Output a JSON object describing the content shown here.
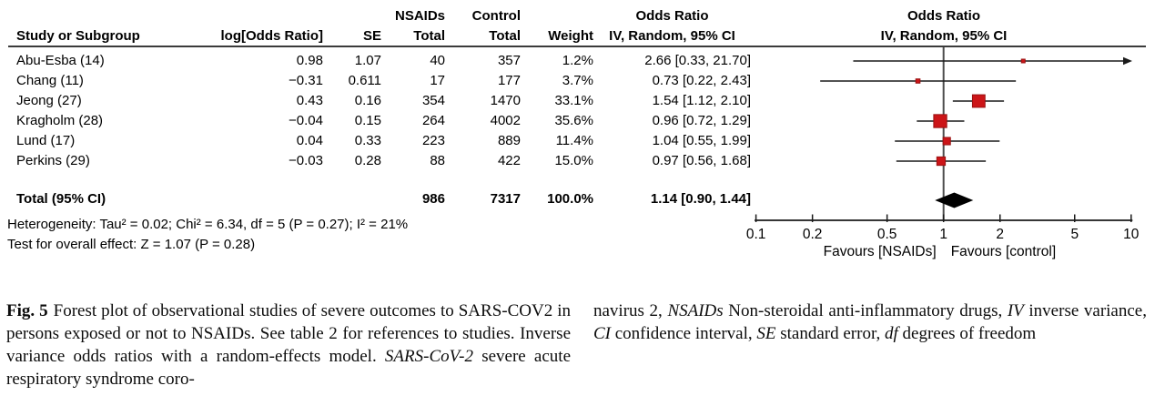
{
  "figure": {
    "group_headers": {
      "nsaids": "NSAIDs",
      "control": "Control"
    },
    "col_headers": {
      "study": "Study or Subgroup",
      "log_or": "log[Odds Ratio]",
      "se": "SE",
      "nsaids_total": "Total",
      "control_total": "Total",
      "weight": "Weight",
      "or_title": "Odds Ratio",
      "or_ci": "IV, Random, 95% CI"
    },
    "plot_headers": {
      "title": "Odds Ratio",
      "subtitle": "IV, Random, 95% CI"
    },
    "totals": {
      "label": "Total (95% CI)",
      "nsaids_total": "986",
      "control_total": "7317",
      "weight": "100.0%",
      "or_ci": "1.14 [0.90, 1.44]"
    },
    "heterogeneity": "Heterogeneity: Tau² = 0.02; Chi² = 6.34, df = 5 (P = 0.27); I² = 21%",
    "overall_effect": "Test for overall effect: Z = 1.07 (P = 0.28)"
  },
  "chart_data": {
    "type": "scatter",
    "variant": "forest-plot",
    "title": "Odds Ratio",
    "subtitle": "IV, Random, 95% CI",
    "studies": [
      {
        "name": "Abu-Esba (14)",
        "log_or": "0.98",
        "se": "1.07",
        "nsaids_total": "40",
        "control_total": "357",
        "weight": "1.2%",
        "or_ci_text": "2.66 [0.33, 21.70]",
        "or": 2.66,
        "ci_low": 0.33,
        "ci_high": 21.7,
        "weight_pct": 1.2
      },
      {
        "name": "Chang (11)",
        "log_or": "−0.31",
        "se": "0.611",
        "nsaids_total": "17",
        "control_total": "177",
        "weight": "3.7%",
        "or_ci_text": "0.73 [0.22, 2.43]",
        "or": 0.73,
        "ci_low": 0.22,
        "ci_high": 2.43,
        "weight_pct": 3.7
      },
      {
        "name": "Jeong (27)",
        "log_or": "0.43",
        "se": "0.16",
        "nsaids_total": "354",
        "control_total": "1470",
        "weight": "33.1%",
        "or_ci_text": "1.54 [1.12, 2.10]",
        "or": 1.54,
        "ci_low": 1.12,
        "ci_high": 2.1,
        "weight_pct": 33.1
      },
      {
        "name": "Kragholm (28)",
        "log_or": "−0.04",
        "se": "0.15",
        "nsaids_total": "264",
        "control_total": "4002",
        "weight": "35.6%",
        "or_ci_text": "0.96 [0.72, 1.29]",
        "or": 0.96,
        "ci_low": 0.72,
        "ci_high": 1.29,
        "weight_pct": 35.6
      },
      {
        "name": "Lund (17)",
        "log_or": "0.04",
        "se": "0.33",
        "nsaids_total": "223",
        "control_total": "889",
        "weight": "11.4%",
        "or_ci_text": "1.04 [0.55, 1.99]",
        "or": 1.04,
        "ci_low": 0.55,
        "ci_high": 1.99,
        "weight_pct": 11.4
      },
      {
        "name": "Perkins (29)",
        "log_or": "−0.03",
        "se": "0.28",
        "nsaids_total": "88",
        "control_total": "422",
        "weight": "15.0%",
        "or_ci_text": "0.97 [0.56, 1.68]",
        "or": 0.97,
        "ci_low": 0.56,
        "ci_high": 1.68,
        "weight_pct": 15.0
      }
    ],
    "total": {
      "or": 1.14,
      "ci_low": 0.9,
      "ci_high": 1.44
    },
    "axis": {
      "scale": "log",
      "min": 0.1,
      "max": 10,
      "ticks": [
        {
          "v": 0.1,
          "label": "0.1"
        },
        {
          "v": 0.2,
          "label": "0.2"
        },
        {
          "v": 0.5,
          "label": "0.5"
        },
        {
          "v": 1,
          "label": "1"
        },
        {
          "v": 2,
          "label": "2"
        },
        {
          "v": 5,
          "label": "5"
        },
        {
          "v": 10,
          "label": "10"
        }
      ],
      "label_left": "Favours [NSAIDs]",
      "label_right": "Favours [control]"
    },
    "colors": {
      "marker_fill": "#CC1518",
      "marker_stroke": "#991111",
      "diamond": "#000000",
      "line": "#1a1a1a",
      "null_line": "#4d4d4d"
    }
  },
  "caption": {
    "left_segments": [
      {
        "t": "Fig. 5",
        "b": true
      },
      {
        "t": "Forest plot of observational studies of severe outcomes to SARS-COV2 in persons exposed or not to NSAIDs. See table 2 for references to studies. Inverse variance odds ratios with a random-effects model. "
      },
      {
        "t": "SARS-CoV-2",
        "i": true
      },
      {
        "t": " severe acute respiratory syndrome coro-"
      }
    ],
    "right_segments": [
      {
        "t": "navirus 2, "
      },
      {
        "t": "NSAIDs",
        "i": true
      },
      {
        "t": " Non-steroidal anti-inflammatory drugs, "
      },
      {
        "t": "IV",
        "i": true
      },
      {
        "t": " inverse variance, "
      },
      {
        "t": "CI",
        "i": true
      },
      {
        "t": " confidence interval, "
      },
      {
        "t": "SE",
        "i": true
      },
      {
        "t": " standard error, "
      },
      {
        "t": "df",
        "i": true
      },
      {
        "t": " degrees of freedom"
      }
    ]
  }
}
